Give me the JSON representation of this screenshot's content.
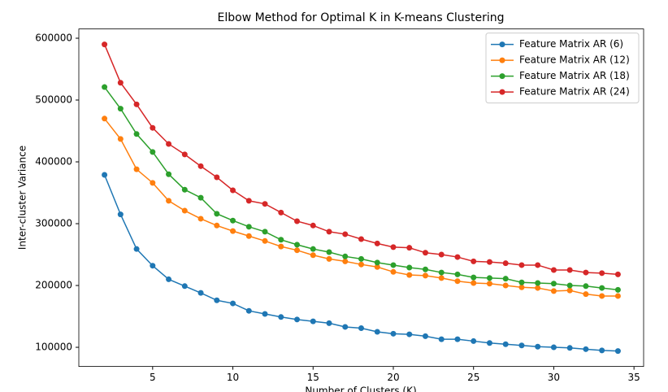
{
  "chart_data": {
    "type": "line",
    "title": "Elbow Method for Optimal K in K-means Clustering",
    "x_label": "Number of Clusters (K)",
    "y_label": "Inter-cluster Variance",
    "x": [
      2,
      3,
      4,
      5,
      6,
      7,
      8,
      9,
      10,
      11,
      12,
      13,
      14,
      15,
      16,
      17,
      18,
      19,
      20,
      21,
      22,
      23,
      24,
      25,
      26,
      27,
      28,
      29,
      30,
      31,
      32,
      33,
      34
    ],
    "series": [
      {
        "name": "Feature Matrix AR (6)",
        "color": "#1f77b4",
        "values": [
          379000,
          315000,
          259000,
          232000,
          210000,
          199000,
          188000,
          176000,
          171000,
          159000,
          154000,
          149000,
          145000,
          142000,
          139000,
          133000,
          131000,
          125000,
          122000,
          121000,
          118000,
          113000,
          113000,
          110000,
          107000,
          105000,
          103000,
          101000,
          100000,
          99000,
          97000,
          95000,
          94000
        ]
      },
      {
        "name": "Feature Matrix AR (12)",
        "color": "#ff7f0e",
        "values": [
          470000,
          437000,
          388000,
          366000,
          337000,
          321000,
          308000,
          297000,
          288000,
          280000,
          272000,
          263000,
          257000,
          249000,
          243000,
          239000,
          234000,
          230000,
          222000,
          217000,
          216000,
          212000,
          207000,
          204000,
          203000,
          200000,
          197000,
          196000,
          191000,
          192000,
          186000,
          183000,
          183000
        ]
      },
      {
        "name": "Feature Matrix AR (18)",
        "color": "#2ca02c",
        "values": [
          521000,
          486000,
          445000,
          416000,
          380000,
          355000,
          342000,
          316000,
          305000,
          295000,
          287000,
          274000,
          266000,
          259000,
          254000,
          247000,
          243000,
          237000,
          233000,
          229000,
          226000,
          221000,
          218000,
          213000,
          212000,
          211000,
          205000,
          204000,
          203000,
          200000,
          199000,
          196000,
          193000
        ]
      },
      {
        "name": "Feature Matrix AR (24)",
        "color": "#d62728",
        "values": [
          590000,
          528000,
          493000,
          455000,
          429000,
          412000,
          393000,
          375000,
          354000,
          337000,
          332000,
          318000,
          304000,
          297000,
          287000,
          283000,
          275000,
          268000,
          262000,
          261000,
          253000,
          250000,
          246000,
          239000,
          238000,
          236000,
          233000,
          233000,
          225000,
          225000,
          221000,
          220000,
          218000
        ]
      }
    ],
    "xlim": [
      0.4,
      35.6
    ],
    "xticks": [
      5,
      10,
      15,
      20,
      25,
      30,
      35
    ],
    "ylim": [
      69000,
      615000
    ],
    "yticks": [
      100000,
      200000,
      300000,
      400000,
      500000,
      600000
    ],
    "legend": "upper right"
  }
}
